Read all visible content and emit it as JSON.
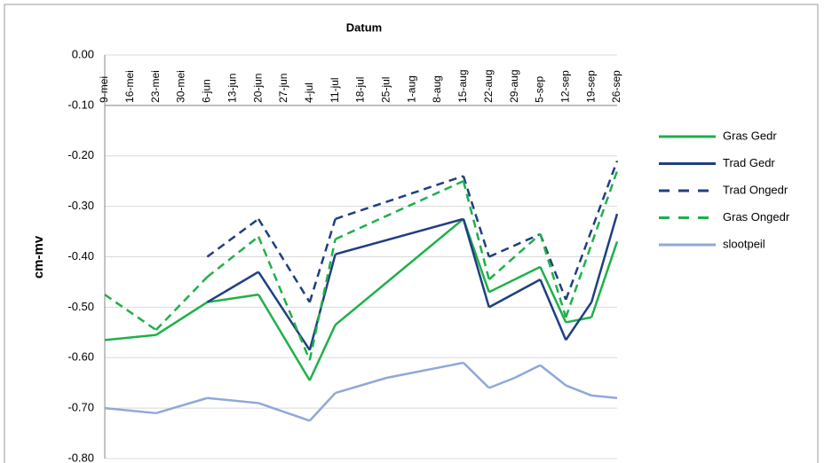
{
  "chart_data": {
    "type": "line",
    "x_label": "Datum",
    "y_label": "cm-mv",
    "categories": [
      "9-mei",
      "16-mei",
      "23-mei",
      "30-mei",
      "6-jun",
      "13-jun",
      "20-jun",
      "27-jun",
      "4-jul",
      "11-jul",
      "18-jul",
      "25-jul",
      "1-aug",
      "8-aug",
      "15-aug",
      "22-aug",
      "29-aug",
      "5-sep",
      "12-sep",
      "19-sep",
      "26-sep"
    ],
    "series": [
      {
        "name": "Gras Gedr",
        "color": "#1fb04a",
        "dashed": false,
        "values": [
          -0.565,
          null,
          -0.555,
          null,
          -0.49,
          null,
          -0.475,
          null,
          -0.645,
          -0.535,
          null,
          null,
          null,
          null,
          -0.325,
          -0.47,
          null,
          -0.42,
          -0.53,
          -0.52,
          -0.37
        ]
      },
      {
        "name": "Trad Gedr",
        "color": "#1f3f80",
        "dashed": false,
        "values": [
          null,
          null,
          null,
          null,
          -0.49,
          null,
          -0.43,
          null,
          -0.585,
          -0.395,
          null,
          null,
          null,
          null,
          -0.325,
          -0.5,
          null,
          -0.445,
          -0.565,
          -0.49,
          -0.315
        ]
      },
      {
        "name": "Trad Ongedr",
        "color": "#1f3f80",
        "dashed": true,
        "values": [
          null,
          null,
          null,
          null,
          -0.4,
          null,
          -0.325,
          null,
          -0.49,
          -0.325,
          null,
          null,
          null,
          null,
          -0.24,
          -0.4,
          null,
          -0.355,
          -0.485,
          null,
          -0.21
        ]
      },
      {
        "name": "Gras Ongedr",
        "color": "#1fb04a",
        "dashed": true,
        "values": [
          -0.475,
          null,
          -0.545,
          null,
          -0.44,
          null,
          -0.36,
          null,
          -0.605,
          -0.365,
          null,
          null,
          null,
          null,
          -0.25,
          -0.445,
          null,
          -0.355,
          -0.52,
          null,
          -0.23
        ]
      },
      {
        "name": "slootpeil",
        "color": "#8fa8d8",
        "dashed": false,
        "values": [
          -0.7,
          null,
          -0.71,
          null,
          -0.68,
          null,
          -0.69,
          null,
          -0.725,
          -0.67,
          null,
          -0.64,
          null,
          null,
          -0.61,
          -0.66,
          -0.64,
          -0.615,
          -0.655,
          -0.675,
          -0.68
        ]
      }
    ],
    "ylim": [
      -0.8,
      0
    ],
    "yticks": [
      {
        "value": 0,
        "label": "0.00"
      },
      {
        "value": -0.1,
        "label": "-0.10"
      },
      {
        "value": -0.2,
        "label": "-0.20"
      },
      {
        "value": -0.3,
        "label": "-0.30"
      },
      {
        "value": -0.4,
        "label": "-0.40"
      },
      {
        "value": -0.5,
        "label": "-0.50"
      },
      {
        "value": -0.6,
        "label": "-0.60"
      },
      {
        "value": -0.7,
        "label": "-0.70"
      },
      {
        "value": -0.8,
        "label": "-0.80"
      }
    ],
    "x_axis_at": -0.1,
    "grid": true,
    "legend": "right"
  }
}
